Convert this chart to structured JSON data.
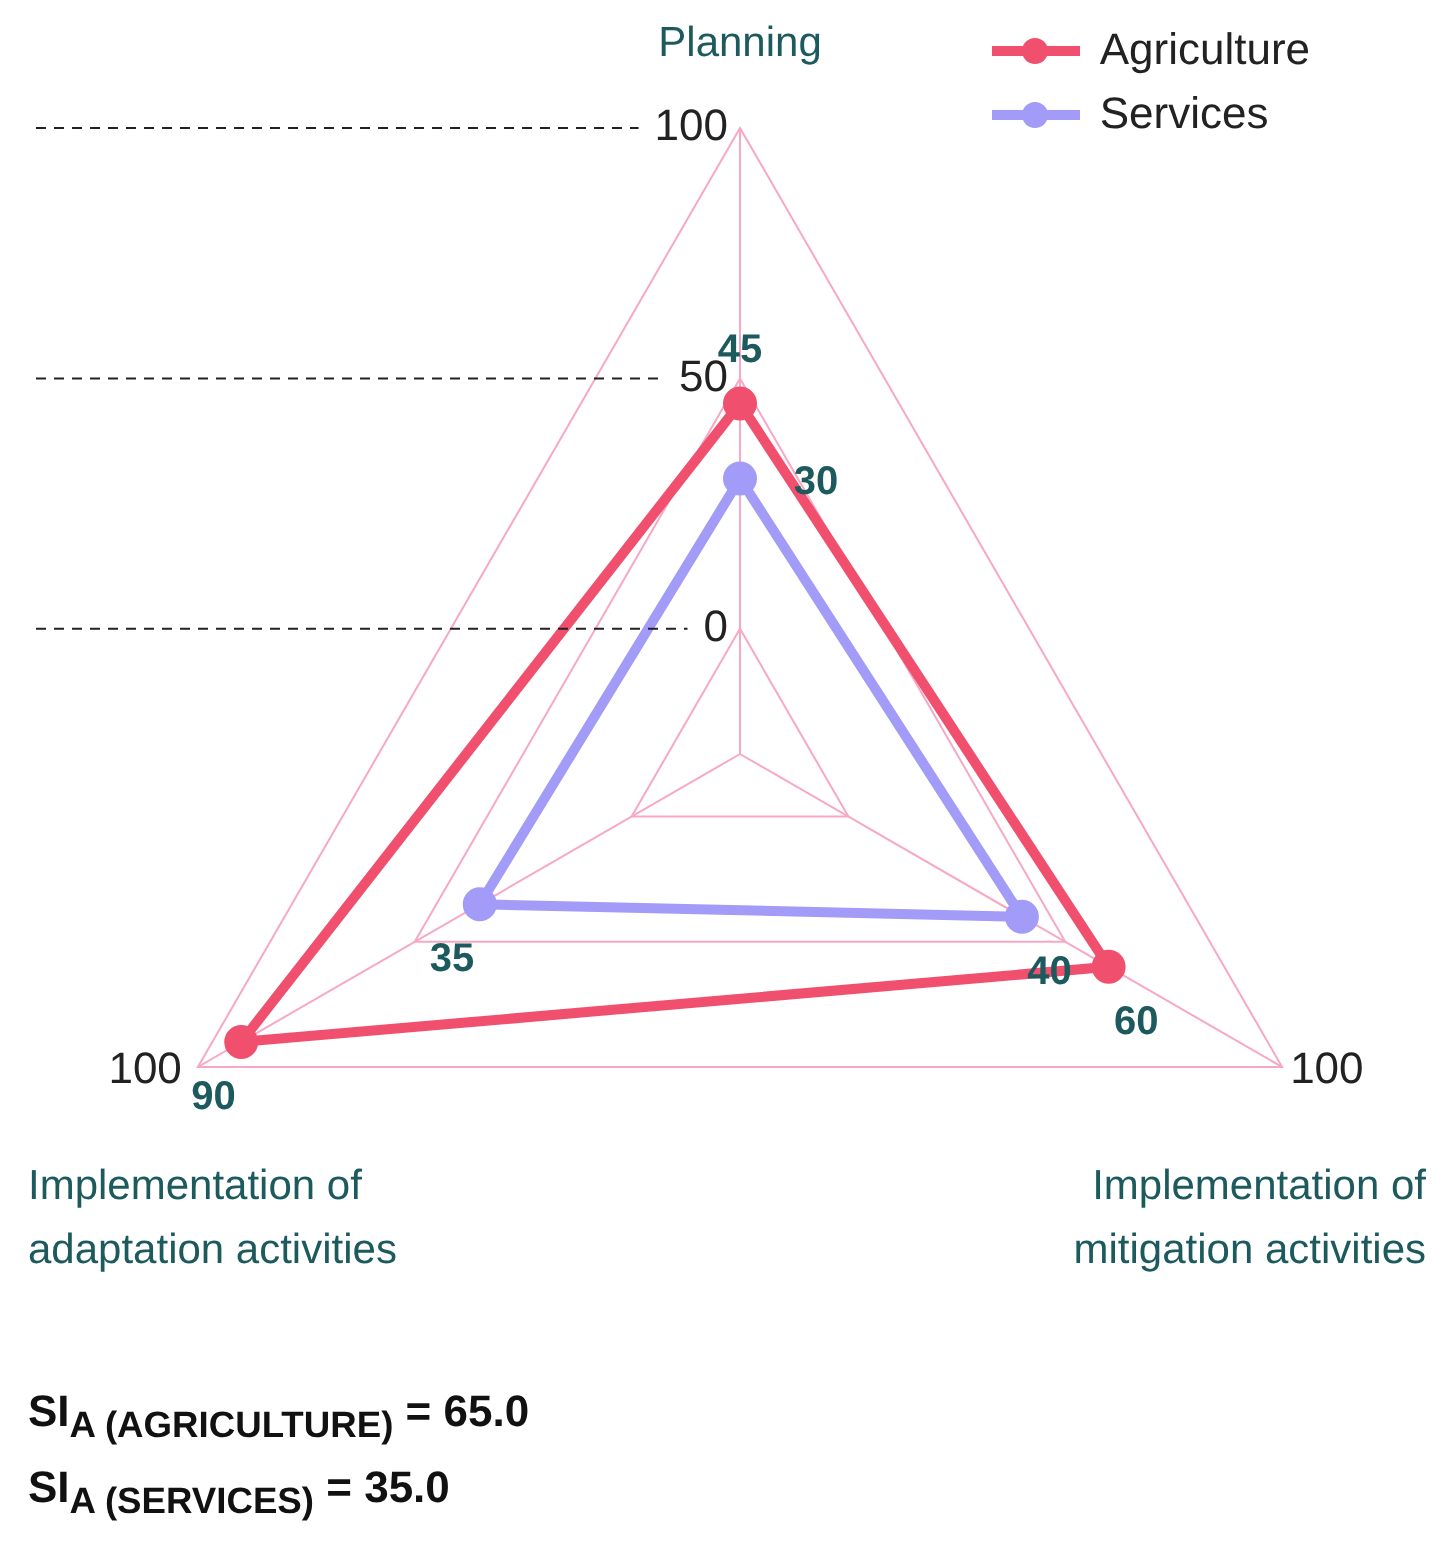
{
  "chart_data": {
    "type": "radar",
    "categories": [
      "Planning",
      "Implementation of mitigation activities",
      "Implementation of adaptation activities"
    ],
    "series": [
      {
        "name": "Agriculture",
        "color": "#f0506e",
        "values": [
          45,
          60,
          90
        ]
      },
      {
        "name": "Services",
        "color": "#a29bf7",
        "values": [
          30,
          40,
          35
        ]
      }
    ],
    "ylim": [
      -25,
      100
    ],
    "yticks": [
      0,
      50,
      100
    ],
    "grid": true,
    "legend": "top right",
    "marker": "circle",
    "data_labels": true,
    "annotations": [
      {
        "text": "100",
        "x": "Implementation of mitigation activities"
      },
      {
        "text": "100",
        "x": "Implementation of adaptation activities"
      },
      "SI$_{A (AGRICULTURE)}$ = 65.0",
      "SI$_{A (SERVICES)}$ = 35.0"
    ]
  }
}
